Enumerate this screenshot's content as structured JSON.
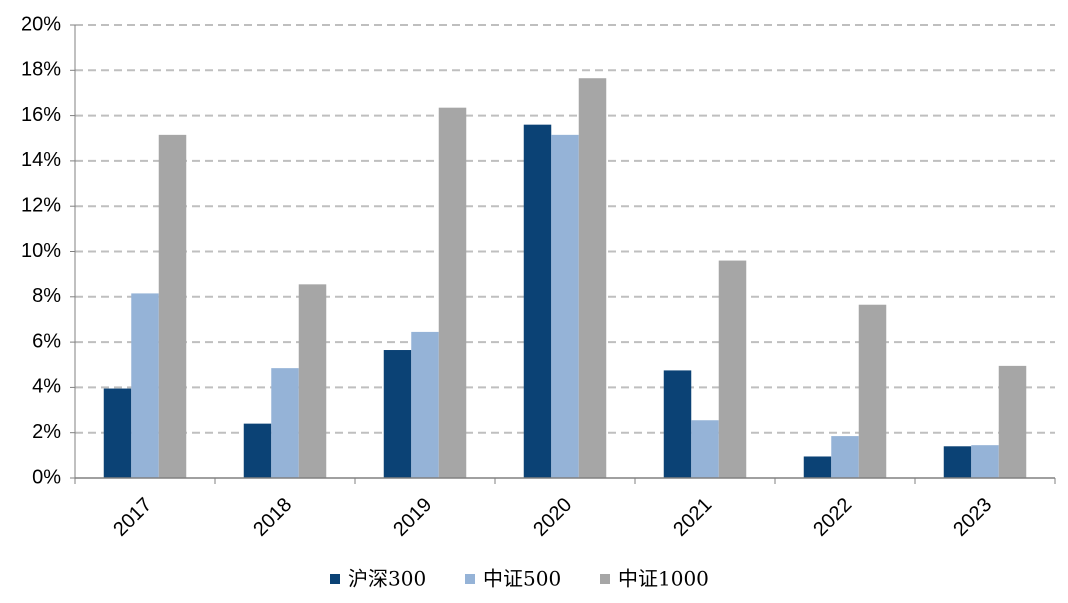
{
  "chart_data": {
    "type": "bar",
    "categories": [
      "2017",
      "2018",
      "2019",
      "2020",
      "2021",
      "2022",
      "2023"
    ],
    "series": [
      {
        "name": "沪深300",
        "color": "#0b4275",
        "values": [
          3.95,
          2.4,
          5.65,
          15.6,
          4.75,
          0.95,
          1.4
        ]
      },
      {
        "name": "中证500",
        "color": "#95b3d7",
        "values": [
          8.15,
          4.85,
          6.45,
          15.15,
          2.55,
          1.85,
          1.45
        ]
      },
      {
        "name": "中证1000",
        "color": "#a6a6a6",
        "values": [
          15.15,
          8.55,
          16.35,
          17.65,
          9.6,
          7.65,
          4.95
        ]
      }
    ],
    "ylim": [
      0,
      20
    ],
    "yticks": [
      {
        "value": 0,
        "label": "0%"
      },
      {
        "value": 2,
        "label": "2%"
      },
      {
        "value": 4,
        "label": "4%"
      },
      {
        "value": 6,
        "label": "6%"
      },
      {
        "value": 8,
        "label": "8%"
      },
      {
        "value": 10,
        "label": "10%"
      },
      {
        "value": 12,
        "label": "12%"
      },
      {
        "value": 14,
        "label": "14%"
      },
      {
        "value": 16,
        "label": "16%"
      },
      {
        "value": 18,
        "label": "18%"
      },
      {
        "value": 20,
        "label": "20%"
      }
    ],
    "grid": true
  }
}
